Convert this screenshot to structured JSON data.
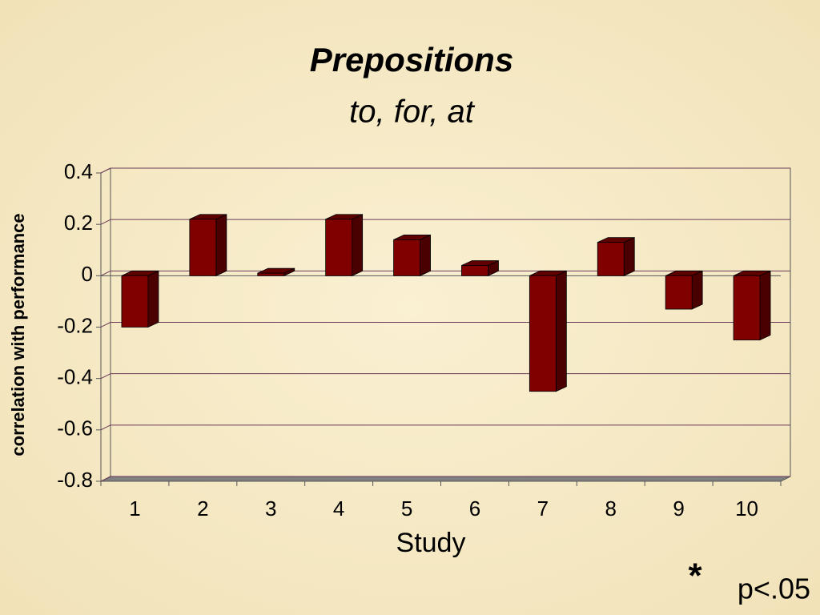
{
  "chart_data": {
    "type": "bar3d",
    "title": "Prepositions",
    "subtitle": "to, for, at",
    "y_label": "correlation with performance",
    "x_label": "Study",
    "annotations": [
      "*",
      "p<.05"
    ],
    "categories": [
      "1",
      "2",
      "3",
      "4",
      "5",
      "6",
      "7",
      "8",
      "9",
      "10"
    ],
    "values": [
      -0.2,
      0.22,
      0.01,
      0.22,
      0.14,
      0.04,
      -0.45,
      0.13,
      -0.13,
      -0.25
    ],
    "color": "#800000",
    "ylim": [
      -0.8,
      0.4
    ],
    "yticks": [
      0.4,
      0.2,
      0,
      -0.2,
      -0.4,
      -0.6,
      -0.8
    ],
    "grid": true
  }
}
